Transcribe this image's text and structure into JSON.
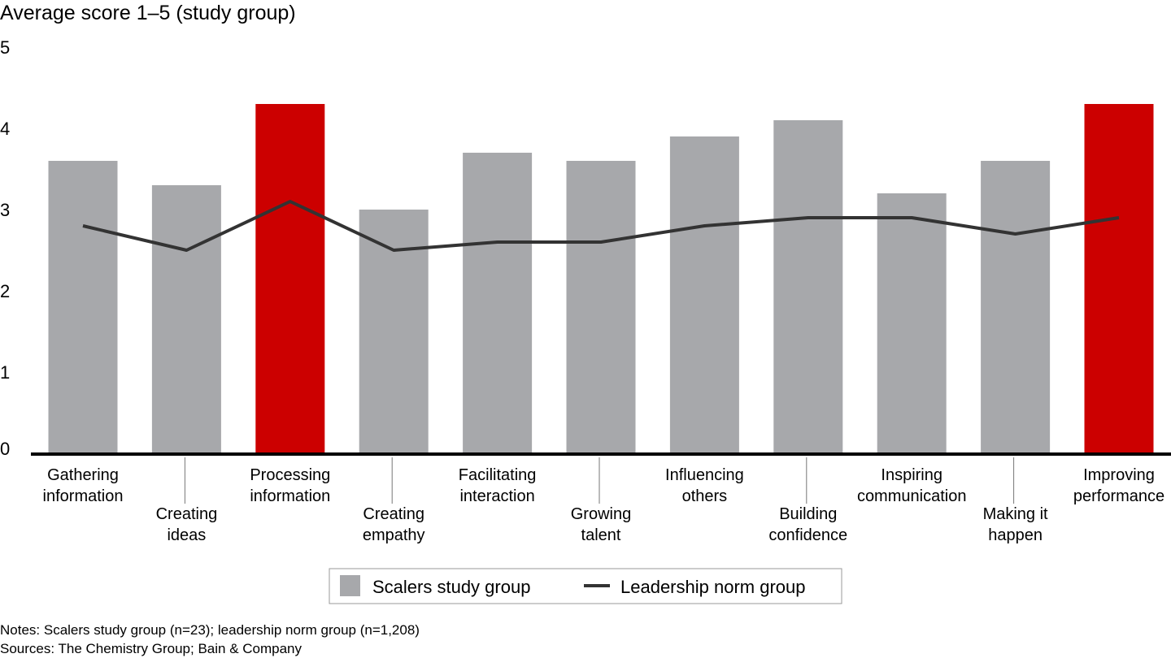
{
  "chart_data": {
    "type": "bar",
    "title": "Average score 1–5 (study group)",
    "ylim": [
      0,
      5
    ],
    "yticks": [
      "0",
      "1",
      "2",
      "3",
      "4",
      "5"
    ],
    "grid": false,
    "legend_placement": "bottom-center",
    "categories": [
      [
        "Gathering",
        "information"
      ],
      [
        "Creating",
        "ideas"
      ],
      [
        "Processing",
        "information"
      ],
      [
        "Creating",
        "empathy"
      ],
      [
        "Facilitating",
        "interaction"
      ],
      [
        "Growing",
        "talent"
      ],
      [
        "Influencing",
        "others"
      ],
      [
        "Building",
        "confidence"
      ],
      [
        "Inspiring",
        "communication"
      ],
      [
        "Making it",
        "happen"
      ],
      [
        "Improving",
        "performance"
      ]
    ],
    "series": [
      {
        "name": "Scalers study group",
        "type": "bar",
        "color": "#a7a8ab",
        "highlight_color": "#cc0000",
        "highlighted": [
          2,
          10
        ],
        "values": [
          3.6,
          3.3,
          4.3,
          3.0,
          3.7,
          3.6,
          3.9,
          4.1,
          3.2,
          3.6,
          4.3
        ]
      },
      {
        "name": "Leadership norm group",
        "type": "line",
        "color": "#333333",
        "values": [
          2.8,
          2.5,
          3.1,
          2.5,
          2.6,
          2.6,
          2.8,
          2.9,
          2.9,
          2.7,
          2.9
        ]
      }
    ]
  },
  "notes": "Notes: Scalers study group (n=23); leadership norm group (n=1,208)",
  "sources": "Sources: The Chemistry Group; Bain & Company"
}
